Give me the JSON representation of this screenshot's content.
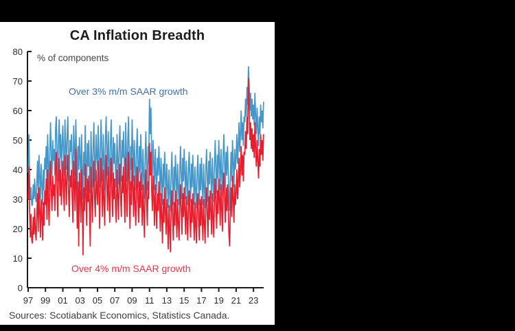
{
  "source": {
    "text": "Sources: Scotiabank Economics, Statistics Canada."
  },
  "colors": {
    "background": "#000000",
    "panel": "#ffffff",
    "axis": "#1a1a1a"
  },
  "chart_data": {
    "type": "line",
    "title": "CA Inflation Breadth",
    "unit_label": "% of components",
    "x_start_year": 1997,
    "frequency": "monthly",
    "ylim": [
      0,
      80
    ],
    "grid": false,
    "legend_position": "inline-annotations",
    "y_ticks": [
      0,
      10,
      20,
      30,
      40,
      50,
      60,
      70,
      80
    ],
    "x_tick_years": [
      "97",
      "99",
      "01",
      "03",
      "05",
      "07",
      "09",
      "11",
      "13",
      "15",
      "17",
      "19",
      "21",
      "23"
    ],
    "series": [
      {
        "name": "Over 3% m/m SAAR growth",
        "color": "#4697c9",
        "label_color": "#3d6fb2",
        "values": [
          39,
          52,
          38,
          30,
          34,
          28,
          28,
          35,
          30,
          37,
          31,
          29,
          36,
          43,
          31,
          45,
          38,
          30,
          42,
          35,
          28,
          40,
          33,
          44,
          40,
          48,
          35,
          52,
          42,
          33,
          46,
          56,
          44,
          38,
          50,
          43,
          47,
          38,
          54,
          58,
          45,
          36,
          50,
          57,
          44,
          52,
          40,
          48,
          55,
          45,
          38,
          57,
          48,
          40,
          52,
          58,
          44,
          36,
          50,
          46,
          52,
          42,
          34,
          55,
          47,
          38,
          57,
          45,
          33,
          48,
          40,
          51,
          44,
          34,
          52,
          40,
          30,
          46,
          38,
          55,
          43,
          33,
          49,
          41,
          50,
          38,
          32,
          53,
          44,
          34,
          47,
          56,
          42,
          36,
          52,
          45,
          40,
          55,
          44,
          34,
          48,
          57,
          45,
          36,
          52,
          42,
          33,
          50,
          58,
          46,
          38,
          53,
          43,
          34,
          49,
          57,
          44,
          36,
          51,
          42,
          49,
          39,
          34,
          52,
          44,
          35,
          47,
          55,
          43,
          36,
          50,
          44,
          53,
          42,
          34,
          56,
          46,
          36,
          50,
          58,
          44,
          33,
          48,
          40,
          57,
          46,
          36,
          50,
          41,
          33,
          46,
          54,
          42,
          34,
          48,
          39,
          52,
          42,
          33,
          47,
          38,
          30,
          44,
          53,
          41,
          33,
          48,
          42,
          64,
          52,
          61,
          46,
          38,
          50,
          42,
          33,
          47,
          39,
          32,
          44,
          38,
          48,
          40,
          31,
          44,
          36,
          28,
          42,
          34,
          46,
          38,
          30,
          42,
          34,
          27,
          40,
          32,
          26,
          38,
          46,
          36,
          28,
          41,
          33,
          45,
          37,
          29,
          42,
          34,
          28,
          40,
          48,
          38,
          30,
          44,
          36,
          47,
          38,
          30,
          43,
          35,
          28,
          41,
          46,
          36,
          29,
          42,
          34,
          45,
          36,
          28,
          41,
          33,
          27,
          39,
          45,
          35,
          28,
          42,
          33,
          44,
          35,
          28,
          42,
          34,
          27,
          40,
          47,
          37,
          29,
          43,
          35,
          46,
          38,
          30,
          44,
          36,
          29,
          42,
          50,
          40,
          32,
          45,
          37,
          50,
          42,
          33,
          47,
          39,
          31,
          44,
          52,
          42,
          34,
          46,
          38,
          48,
          40,
          30,
          26,
          38,
          46,
          36,
          50,
          42,
          34,
          47,
          40,
          44,
          52,
          42,
          48,
          56,
          46,
          52,
          60,
          50,
          56,
          48,
          58,
          56,
          64,
          58,
          68,
          62,
          75,
          69,
          60,
          66,
          58,
          64,
          57,
          62,
          55,
          66,
          58,
          52,
          61,
          54,
          48,
          58,
          52,
          62,
          56,
          60,
          54,
          63
        ]
      },
      {
        "name": "Over 4% m/m SAAR growth",
        "color": "#e81d2e",
        "label_color": "#ee3341",
        "values": [
          30,
          41,
          27,
          17,
          25,
          16,
          15,
          24,
          18,
          27,
          19,
          16,
          25,
          32,
          19,
          34,
          26,
          17,
          30,
          24,
          16,
          29,
          21,
          33,
          28,
          37,
          23,
          40,
          30,
          21,
          34,
          43,
          32,
          26,
          38,
          31,
          35,
          26,
          42,
          46,
          33,
          24,
          38,
          44,
          31,
          40,
          28,
          36,
          43,
          33,
          26,
          45,
          36,
          28,
          40,
          45,
          32,
          24,
          38,
          34,
          40,
          30,
          22,
          43,
          35,
          26,
          47,
          33,
          20,
          36,
          14,
          39,
          32,
          22,
          40,
          28,
          11,
          34,
          26,
          42,
          31,
          21,
          37,
          29,
          38,
          26,
          14,
          41,
          32,
          22,
          35,
          43,
          30,
          24,
          40,
          33,
          28,
          43,
          32,
          20,
          36,
          44,
          33,
          24,
          40,
          30,
          21,
          38,
          45,
          34,
          26,
          41,
          31,
          22,
          37,
          44,
          32,
          24,
          39,
          30,
          37,
          27,
          22,
          40,
          32,
          23,
          35,
          42,
          31,
          24,
          38,
          32,
          41,
          30,
          22,
          44,
          34,
          24,
          38,
          46,
          32,
          20,
          36,
          28,
          44,
          34,
          24,
          38,
          29,
          21,
          34,
          41,
          30,
          22,
          36,
          27,
          39,
          30,
          21,
          35,
          26,
          17,
          32,
          40,
          29,
          21,
          36,
          30,
          49,
          38,
          46,
          34,
          26,
          38,
          30,
          21,
          35,
          27,
          20,
          32,
          26,
          36,
          28,
          19,
          32,
          24,
          15,
          30,
          22,
          34,
          26,
          18,
          30,
          22,
          13,
          28,
          20,
          12,
          26,
          33,
          24,
          16,
          29,
          21,
          33,
          25,
          17,
          30,
          22,
          16,
          28,
          35,
          26,
          18,
          32,
          24,
          34,
          26,
          18,
          31,
          23,
          16,
          29,
          33,
          24,
          17,
          30,
          22,
          32,
          24,
          16,
          29,
          21,
          15,
          27,
          32,
          23,
          16,
          30,
          21,
          31,
          23,
          16,
          30,
          22,
          15,
          28,
          34,
          25,
          17,
          31,
          23,
          33,
          26,
          18,
          32,
          24,
          17,
          30,
          37,
          28,
          20,
          33,
          25,
          37,
          30,
          21,
          35,
          27,
          19,
          32,
          39,
          30,
          22,
          34,
          26,
          35,
          28,
          18,
          14,
          26,
          34,
          24,
          38,
          30,
          22,
          35,
          28,
          32,
          40,
          30,
          36,
          44,
          34,
          40,
          48,
          38,
          45,
          36,
          46,
          45,
          53,
          47,
          58,
          52,
          71,
          64,
          50,
          56,
          47,
          54,
          46,
          52,
          44,
          56,
          47,
          41,
          50,
          43,
          37,
          47,
          41,
          52,
          45,
          50,
          43,
          52
        ]
      }
    ]
  }
}
